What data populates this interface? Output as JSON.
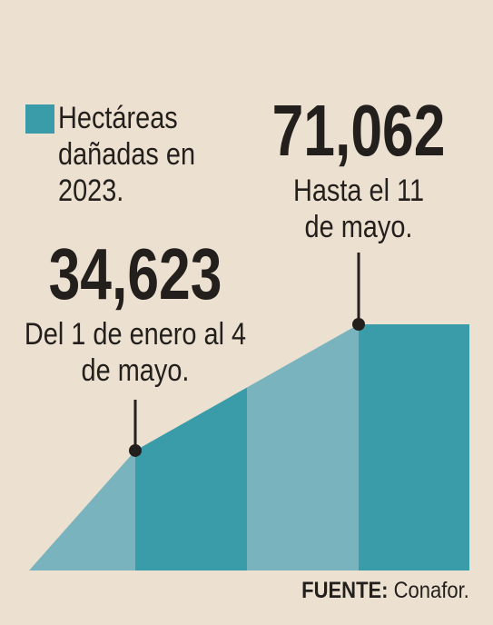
{
  "chart_data": {
    "type": "area",
    "categories": [
      "Del 1 de enero al 4 de mayo.",
      "Hasta el 11 de mayo."
    ],
    "series": [
      {
        "name": "Hectáreas dañadas en 2023.",
        "color": "#3a9ca8",
        "values": [
          34623,
          71062
        ],
        "value_labels": [
          "34,623",
          "71,062"
        ]
      }
    ],
    "source": {
      "label": "FUENTE:",
      "text": "Conafor."
    }
  }
}
